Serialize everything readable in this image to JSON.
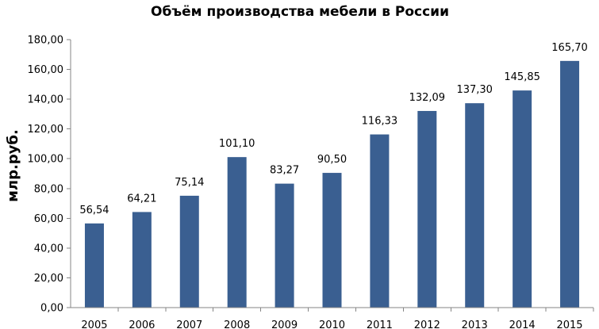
{
  "chart_data": {
    "type": "bar",
    "title": "Объём производства мебели в России",
    "xlabel": "",
    "ylabel": "млр.руб.",
    "categories": [
      "2005",
      "2006",
      "2007",
      "2008",
      "2009",
      "2010",
      "2011",
      "2012",
      "2013",
      "2014",
      "2015"
    ],
    "values": [
      56.54,
      64.21,
      75.14,
      101.1,
      83.27,
      90.5,
      116.33,
      132.09,
      137.3,
      145.85,
      165.7
    ],
    "value_labels": [
      "56,54",
      "64,21",
      "75,14",
      "101,10",
      "83,27",
      "90,50",
      "116,33",
      "132,09",
      "137,30",
      "145,85",
      "165,70"
    ],
    "ylim": [
      0,
      180
    ],
    "yticks": [
      0,
      20,
      40,
      60,
      80,
      100,
      120,
      140,
      160,
      180
    ],
    "ytick_labels": [
      "0,00",
      "20,00",
      "40,00",
      "60,00",
      "80,00",
      "100,00",
      "120,00",
      "140,00",
      "160,00",
      "180,00"
    ],
    "grid": false,
    "legend": "none",
    "bar_color": "#3A5F91"
  }
}
